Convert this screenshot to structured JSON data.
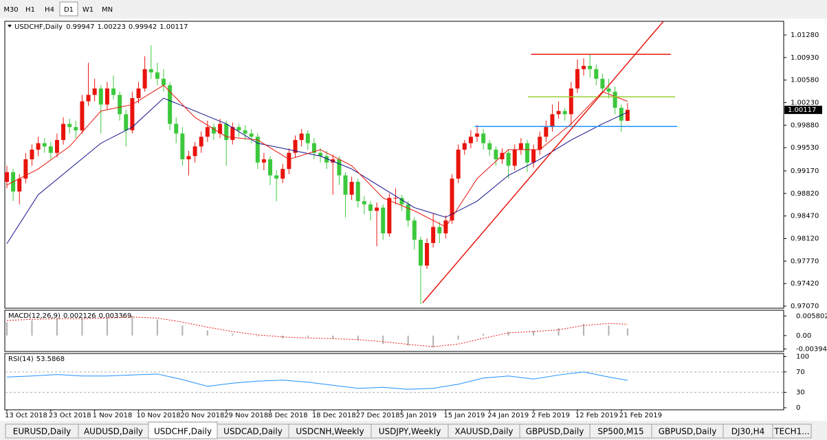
{
  "toolbar": {
    "timeframes": [
      "M30",
      "H1",
      "H4",
      "D1",
      "W1",
      "MN"
    ],
    "active": 3
  },
  "chart_data": {
    "type": "candlestick",
    "symbol": "USDCHF,Daily",
    "ylim": [
      0.97038,
      1.01493
    ],
    "yticks": [
      {
        "value": 1.0128,
        "label": "1.01280"
      },
      {
        "value": 1.0093,
        "label": "1.00930"
      },
      {
        "value": 1.0058,
        "label": "1.00580"
      },
      {
        "value": 1.0023,
        "label": "1.00230"
      },
      {
        "value": 0.9988,
        "label": "0.99880"
      },
      {
        "value": 0.9953,
        "label": "0.99530"
      },
      {
        "value": 0.9917,
        "label": "0.99170"
      },
      {
        "value": 0.9882,
        "label": "0.98820"
      },
      {
        "value": 0.9847,
        "label": "0.98470"
      },
      {
        "value": 0.9812,
        "label": "0.98120"
      },
      {
        "value": 0.9777,
        "label": "0.97770"
      },
      {
        "value": 0.9742,
        "label": "0.97420"
      },
      {
        "value": 0.9707,
        "label": "0.97070"
      }
    ],
    "up_color": "#e8140c",
    "down_color": "#3cc83c",
    "candles": [
      [
        0.99,
        0.9925,
        0.989,
        0.9915
      ],
      [
        0.9915,
        0.992,
        0.987,
        0.9885
      ],
      [
        0.9885,
        0.9912,
        0.9865,
        0.9905
      ],
      [
        0.9905,
        0.9945,
        0.9898,
        0.9935
      ],
      [
        0.9935,
        0.9958,
        0.9925,
        0.995
      ],
      [
        0.995,
        0.997,
        0.994,
        0.996
      ],
      [
        0.996,
        0.9968,
        0.9945,
        0.9955
      ],
      [
        0.9955,
        0.9962,
        0.9935,
        0.9945
      ],
      [
        0.9945,
        0.9975,
        0.9938,
        0.9965
      ],
      [
        0.9965,
        1.0,
        0.9958,
        0.999
      ],
      [
        0.999,
        0.9998,
        0.9975,
        0.9985
      ],
      [
        0.9985,
        0.9995,
        0.9968,
        0.998
      ],
      [
        0.998,
        1.0035,
        0.9975,
        1.0025
      ],
      [
        1.0025,
        1.0085,
        1.0018,
        1.0035
      ],
      [
        1.0035,
        1.006,
        1.0025,
        1.0045
      ],
      [
        1.0045,
        1.005,
        0.9975,
        1.002
      ],
      [
        1.002,
        1.0055,
        1.0012,
        1.0045
      ],
      [
        1.0045,
        1.0065,
        1.0028,
        1.0035
      ],
      [
        1.0035,
        1.004,
        0.9995,
        1.0005
      ],
      [
        1.0005,
        1.0012,
        0.9955,
        0.998
      ],
      [
        0.998,
        1.004,
        0.9975,
        1.003
      ],
      [
        1.003,
        1.0055,
        1.0022,
        1.0045
      ],
      [
        1.0045,
        1.0095,
        1.004,
        1.0075
      ],
      [
        1.0075,
        1.0112,
        1.006,
        1.007
      ],
      [
        1.007,
        1.0085,
        1.005,
        1.006
      ],
      [
        1.006,
        1.0075,
        1.004,
        1.005
      ],
      [
        1.005,
        1.0055,
        0.998,
        0.999
      ],
      [
        0.999,
        1.0,
        0.996,
        0.9975
      ],
      [
        0.9975,
        0.9985,
        0.9925,
        0.9935
      ],
      [
        0.9935,
        0.9948,
        0.991,
        0.994
      ],
      [
        0.994,
        0.9962,
        0.993,
        0.9955
      ],
      [
        0.9955,
        0.9978,
        0.9945,
        0.997
      ],
      [
        0.997,
        0.9995,
        0.9962,
        0.9985
      ],
      [
        0.9985,
        0.999,
        0.9965,
        0.9975
      ],
      [
        0.9975,
        0.9998,
        0.9968,
        0.999
      ],
      [
        0.999,
        0.9995,
        0.9925,
        0.9965
      ],
      [
        0.9965,
        0.9992,
        0.9958,
        0.9985
      ],
      [
        0.9985,
        0.999,
        0.997,
        0.998
      ],
      [
        0.998,
        0.9988,
        0.9965,
        0.9975
      ],
      [
        0.9975,
        0.9982,
        0.996,
        0.997
      ],
      [
        0.997,
        0.9975,
        0.992,
        0.993
      ],
      [
        0.993,
        0.9945,
        0.9918,
        0.9935
      ],
      [
        0.9935,
        0.994,
        0.9895,
        0.991
      ],
      [
        0.991,
        0.9918,
        0.987,
        0.9905
      ],
      [
        0.9905,
        0.9928,
        0.9898,
        0.992
      ],
      [
        0.992,
        0.9952,
        0.9912,
        0.9945
      ],
      [
        0.9945,
        0.9972,
        0.9938,
        0.9965
      ],
      [
        0.9965,
        0.9982,
        0.9955,
        0.9975
      ],
      [
        0.9975,
        0.998,
        0.995,
        0.996
      ],
      [
        0.996,
        0.9968,
        0.9935,
        0.9945
      ],
      [
        0.9945,
        0.9952,
        0.993,
        0.994
      ],
      [
        0.994,
        0.9948,
        0.992,
        0.993
      ],
      [
        0.993,
        0.9942,
        0.988,
        0.9935
      ],
      [
        0.9935,
        0.994,
        0.9895,
        0.991
      ],
      [
        0.991,
        0.9915,
        0.9845,
        0.988
      ],
      [
        0.988,
        0.9908,
        0.9872,
        0.99
      ],
      [
        0.99,
        0.9905,
        0.986,
        0.987
      ],
      [
        0.987,
        0.9878,
        0.985,
        0.9865
      ],
      [
        0.9865,
        0.987,
        0.984,
        0.9855
      ],
      [
        0.9855,
        0.9868,
        0.98,
        0.986
      ],
      [
        0.986,
        0.9865,
        0.981,
        0.982
      ],
      [
        0.982,
        0.9882,
        0.9815,
        0.9875
      ],
      [
        0.9875,
        0.989,
        0.9865,
        0.9875
      ],
      [
        0.9875,
        0.988,
        0.9855,
        0.9865
      ],
      [
        0.9865,
        0.987,
        0.983,
        0.984
      ],
      [
        0.984,
        0.9845,
        0.9795,
        0.981
      ],
      [
        0.981,
        0.9815,
        0.971,
        0.977
      ],
      [
        0.977,
        0.9812,
        0.9765,
        0.9805
      ],
      [
        0.9805,
        0.985,
        0.9798,
        0.983
      ],
      [
        0.983,
        0.9838,
        0.9805,
        0.982
      ],
      [
        0.982,
        0.9848,
        0.9812,
        0.984
      ],
      [
        0.984,
        0.9912,
        0.9835,
        0.9905
      ],
      [
        0.9905,
        0.9958,
        0.9898,
        0.995
      ],
      [
        0.995,
        0.9965,
        0.9942,
        0.996
      ],
      [
        0.996,
        0.998,
        0.9952,
        0.997
      ],
      [
        0.997,
        0.9988,
        0.9962,
        0.9975
      ],
      [
        0.9975,
        0.9982,
        0.995,
        0.996
      ],
      [
        0.996,
        0.9965,
        0.994,
        0.995
      ],
      [
        0.995,
        0.9955,
        0.9925,
        0.9935
      ],
      [
        0.9935,
        0.9952,
        0.9928,
        0.9945
      ],
      [
        0.9945,
        0.995,
        0.9905,
        0.9925
      ],
      [
        0.9925,
        0.9958,
        0.9918,
        0.995
      ],
      [
        0.995,
        0.9968,
        0.9942,
        0.996
      ],
      [
        0.996,
        0.9965,
        0.9915,
        0.993
      ],
      [
        0.993,
        0.9958,
        0.9922,
        0.995
      ],
      [
        0.995,
        0.9978,
        0.9942,
        0.997
      ],
      [
        0.997,
        0.9995,
        0.9962,
        0.9985
      ],
      [
        0.9985,
        1.002,
        0.9978,
        1.0005
      ],
      [
        1.0005,
        1.0025,
        0.9998,
        1.001
      ],
      [
        1.001,
        1.0015,
        0.9995,
        1.0005
      ],
      [
        1.0005,
        1.0055,
        0.9988,
        1.0045
      ],
      [
        1.0045,
        1.009,
        1.0038,
        1.0075
      ],
      [
        1.0075,
        1.0092,
        1.0065,
        1.008
      ],
      [
        1.008,
        1.0098,
        1.0062,
        1.0075
      ],
      [
        1.0075,
        1.0082,
        1.005,
        1.006
      ],
      [
        1.006,
        1.0068,
        1.0038,
        1.0045
      ],
      [
        1.0045,
        1.006,
        1.003,
        1.004
      ],
      [
        1.004,
        1.0048,
        1.0005,
        1.0015
      ],
      [
        1.0015,
        1.002,
        0.9978,
        0.9995
      ],
      [
        0.99947,
        1.00223,
        0.99942,
        1.00117
      ]
    ],
    "ma_fast": {
      "color": "#e8140c",
      "x": [
        0,
        5,
        10,
        15,
        20,
        25,
        30,
        35,
        40,
        45,
        50,
        55,
        60,
        65,
        70,
        75,
        80,
        85,
        90,
        95,
        99
      ],
      "values": [
        0.9895,
        0.992,
        0.9955,
        1.001,
        1.002,
        1.005,
        1.0,
        0.997,
        0.9965,
        0.9935,
        0.995,
        0.9925,
        0.9875,
        0.9855,
        0.983,
        0.9905,
        0.995,
        0.995,
        0.999,
        1.004,
        1.0025
      ]
    },
    "ma_slow": {
      "color": "#10108c",
      "x": [
        0,
        5,
        10,
        15,
        20,
        25,
        30,
        35,
        40,
        45,
        50,
        55,
        60,
        65,
        70,
        75,
        80,
        85,
        90,
        95,
        99
      ],
      "values": [
        0.9804,
        0.988,
        0.992,
        0.996,
        0.9985,
        1.003,
        1.001,
        0.999,
        0.996,
        0.995,
        0.994,
        0.992,
        0.989,
        0.986,
        0.9845,
        0.987,
        0.991,
        0.9935,
        0.9965,
        0.999,
        1.0008
      ]
    },
    "drawings": [
      {
        "color": "#e8140c",
        "x": [
          83.6,
          105.9
        ],
        "values": [
          1.0098,
          1.0098
        ]
      },
      {
        "color": "#9acd32",
        "x": [
          83.1,
          106.6
        ],
        "values": [
          1.0032,
          1.0032
        ]
      },
      {
        "color": "#1e90ff",
        "x": [
          74.6,
          106.9
        ],
        "values": [
          0.9986,
          0.9986
        ]
      },
      {
        "color": "#e8140c",
        "x": [
          66.3,
          104.7
        ],
        "values": [
          0.9712,
          1.0149
        ]
      }
    ],
    "xlabels": [
      {
        "index": 0,
        "label": "13 Oct 2018"
      },
      {
        "index": 7,
        "label": "23 Oct 2018"
      },
      {
        "index": 14,
        "label": "1 Nov 2018"
      },
      {
        "index": 21,
        "label": "10 Nov 2018"
      },
      {
        "index": 28,
        "label": "20 Nov 2018"
      },
      {
        "index": 35,
        "label": "29 Nov 2018"
      },
      {
        "index": 42,
        "label": "8 Dec 2018"
      },
      {
        "index": 49,
        "label": "18 Dec 2018"
      },
      {
        "index": 56,
        "label": "27 Dec 2018"
      },
      {
        "index": 63,
        "label": "5 Jan 2019"
      },
      {
        "index": 70,
        "label": "15 Jan 2019"
      },
      {
        "index": 77,
        "label": "24 Jan 2019"
      },
      {
        "index": 84,
        "label": "2 Feb 2019"
      },
      {
        "index": 91,
        "label": "12 Feb 2019"
      },
      {
        "index": 98,
        "label": "21 Feb 2019"
      }
    ]
  },
  "macd": {
    "title": "MACD(12,26,9)",
    "ylim": [
      -0.0047,
      0.0075
    ],
    "yticks": [
      0.005802,
      {
        "value": 0,
        "label": "0.00"
      },
      -0.003945
    ],
    "x": [
      0,
      4,
      8,
      12,
      16,
      20,
      24,
      28,
      32,
      36,
      40,
      44,
      48,
      52,
      56,
      60,
      64,
      68,
      72,
      76,
      80,
      84,
      88,
      92,
      96,
      99
    ],
    "histogram": {
      "color": "#b0b0b0",
      "values": [
        0.004,
        0.0045,
        0.005,
        0.0052,
        0.0055,
        0.0058,
        0.0048,
        0.003,
        0.0015,
        0.0005,
        -0.0002,
        -0.0008,
        -0.0005,
        -0.001,
        -0.0015,
        -0.0025,
        -0.003,
        -0.0035,
        -0.0012,
        0.0005,
        0.0012,
        0.0014,
        0.0022,
        0.0035,
        0.003,
        0.002126
      ]
    },
    "signal": {
      "color": "#e8140c",
      "values": [
        0.0045,
        0.0048,
        0.005,
        0.005,
        0.0052,
        0.0055,
        0.0052,
        0.004,
        0.0025,
        0.0012,
        0.0002,
        -0.0004,
        -0.0007,
        -0.0009,
        -0.0012,
        -0.0018,
        -0.0026,
        -0.0033,
        -0.0025,
        -0.0008,
        0.0008,
        0.0012,
        0.0017,
        0.003,
        0.0036,
        0.003369
      ]
    }
  },
  "rsi": {
    "title": "RSI(14)",
    "ylim": [
      -4,
      106
    ],
    "yticks": [
      100,
      70,
      30,
      0
    ],
    "color": "#1e90ff",
    "x": [
      0,
      4,
      8,
      12,
      16,
      20,
      24,
      28,
      32,
      36,
      40,
      44,
      48,
      52,
      56,
      60,
      64,
      68,
      72,
      76,
      80,
      84,
      88,
      92,
      96,
      99
    ],
    "values": [
      60,
      62,
      65,
      62,
      62,
      64,
      66,
      55,
      42,
      48,
      52,
      54,
      50,
      44,
      38,
      40,
      36,
      38,
      46,
      58,
      62,
      56,
      64,
      70,
      60,
      53.5868
    ]
  },
  "tabs": {
    "items": [
      "EURUSD,Daily",
      "AUDUSD,Daily",
      "USDCHF,Daily",
      "USDCAD,Daily",
      "USDCNH,Weekly",
      "USDJPY,Weekly",
      "XAUUSD,Daily",
      "GBPUSD,Daily",
      "SP500,M15",
      "GBPUSD,Daily",
      "DJ30,H4",
      "TECH1..."
    ],
    "active": 2
  }
}
